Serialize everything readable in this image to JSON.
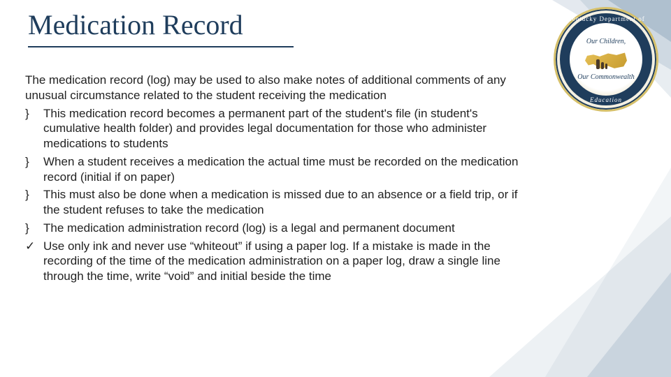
{
  "colors": {
    "title": "#1f3d5c",
    "body_text": "#222222",
    "background": "#ffffff",
    "accent_triangle": "rgba(31,78,121,0.12)",
    "seal_ring": "#1f3d5c",
    "seal_gold": "#d6c06a"
  },
  "typography": {
    "title_font": "Georgia, Times New Roman, serif",
    "title_size_pt": 30,
    "body_font": "Segoe UI, Arial, sans-serif",
    "body_size_pt": 13
  },
  "title": "Medication Record",
  "intro": "The medication record (log) may be used to also make notes of additional comments of any unusual circumstance related to the student receiving the medication",
  "bullets": [
    {
      "marker": "}",
      "text": "This medication record becomes a permanent part of the student's file (in student's cumulative health folder) and provides legal documentation for those who administer medications to students"
    },
    {
      "marker": "}",
      "text": "When a student receives a medication the actual time must be recorded on the medication record (initial if on paper)"
    },
    {
      "marker": "}",
      "text": "This must also be done when a medication is missed due to an absence or a field trip, or if the student refuses to take the medication"
    },
    {
      "marker": "}",
      "text": "The medication administration record (log) is a legal and permanent document"
    },
    {
      "marker": "✓",
      "text": "Use only ink and never use “whiteout” if using a paper log. If a mistake is made in the recording of the time of the medication administration on a paper log, draw a single line through the time, write “void” and initial beside the time"
    }
  ],
  "seal": {
    "ring_top_text": "Kentucky Department of",
    "ring_bottom_text": "Education",
    "center_top": "Our Children,",
    "center_bottom": "Our Commonwealth"
  }
}
